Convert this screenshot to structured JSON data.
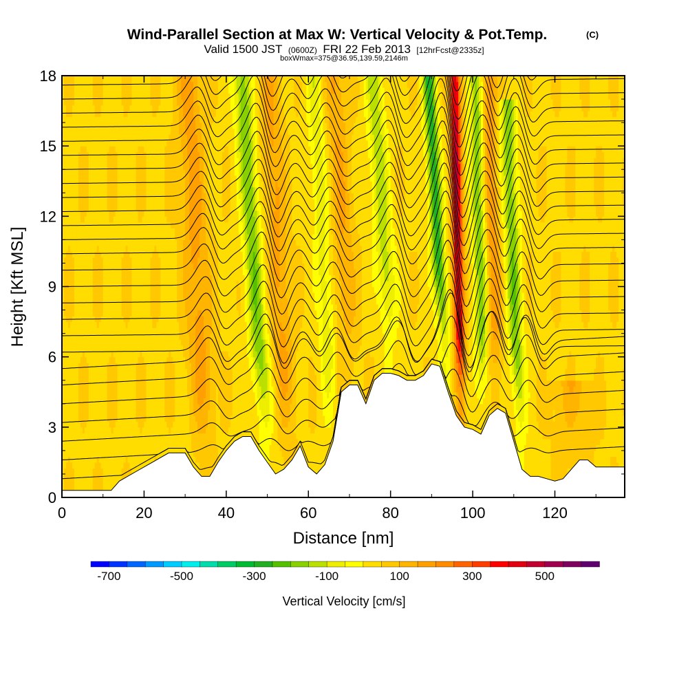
{
  "header": {
    "title": "Wind-Parallel Section at Max W: Vertical Velocity & Pot.Temp.",
    "copyright": "(C)",
    "valid_prefix": "Valid 1500 JST",
    "valid_utc": "(0600Z)",
    "valid_date": "FRI 22 Feb 2013",
    "forecast": "[12hrFcst@2335z]",
    "boxinfo": "boxWmax=375@36.95,139.59,2146m"
  },
  "chart_data": {
    "type": "heatmap",
    "title": "Wind-Parallel Section at Max W: Vertical Velocity & Pot.Temp.",
    "xlabel": "Distance [nm]",
    "ylabel": "Height [Kft MSL]",
    "xlim": [
      0,
      137
    ],
    "ylim": [
      0,
      18
    ],
    "x_ticks": [
      "0",
      "20",
      "40",
      "60",
      "80",
      "100",
      "120"
    ],
    "y_ticks": [
      "0",
      "3",
      "6",
      "9",
      "12",
      "15",
      "18"
    ],
    "colorbar": {
      "title": "Vertical Velocity [cm/s]",
      "tick_labels": [
        "-700",
        "-500",
        "-300",
        "-100",
        "100",
        "300",
        "500"
      ],
      "tick_values": [
        -700,
        -500,
        -300,
        -100,
        100,
        300,
        500
      ],
      "range": [
        -750,
        650
      ],
      "colors": [
        "#0000ff",
        "#0033ff",
        "#0066ff",
        "#0099ff",
        "#00ccff",
        "#00eeee",
        "#00ddaa",
        "#00cc66",
        "#00bb33",
        "#22b022",
        "#55c000",
        "#88d000",
        "#bbe000",
        "#eeee00",
        "#ffff00",
        "#ffdd00",
        "#ffc800",
        "#ffb400",
        "#ffa000",
        "#ff8c00",
        "#ff6400",
        "#ff3c00",
        "#ff0000",
        "#e00010",
        "#c00030",
        "#a00050",
        "#800060",
        "#600070"
      ]
    },
    "terrain_kft": [
      [
        0,
        0.3
      ],
      [
        12,
        0.3
      ],
      [
        14,
        0.7
      ],
      [
        18,
        1.1
      ],
      [
        22,
        1.5
      ],
      [
        26,
        1.9
      ],
      [
        30,
        1.9
      ],
      [
        32,
        1.3
      ],
      [
        34,
        0.9
      ],
      [
        36,
        0.9
      ],
      [
        38,
        1.5
      ],
      [
        40,
        2.0
      ],
      [
        42,
        2.4
      ],
      [
        44,
        2.6
      ],
      [
        46,
        2.6
      ],
      [
        48,
        2.0
      ],
      [
        50,
        1.5
      ],
      [
        52,
        1.0
      ],
      [
        54,
        1.2
      ],
      [
        56,
        1.6
      ],
      [
        58,
        2.2
      ],
      [
        60,
        1.3
      ],
      [
        62,
        1.0
      ],
      [
        64,
        1.4
      ],
      [
        66,
        2.4
      ],
      [
        68,
        4.5
      ],
      [
        70,
        4.8
      ],
      [
        72,
        4.8
      ],
      [
        74,
        4.0
      ],
      [
        76,
        5.0
      ],
      [
        78,
        5.3
      ],
      [
        80,
        5.3
      ],
      [
        82,
        5.2
      ],
      [
        84,
        5.0
      ],
      [
        86,
        5.0
      ],
      [
        88,
        5.2
      ],
      [
        90,
        5.7
      ],
      [
        92,
        5.6
      ],
      [
        94,
        4.5
      ],
      [
        96,
        3.5
      ],
      [
        98,
        3.0
      ],
      [
        100,
        2.9
      ],
      [
        102,
        2.7
      ],
      [
        104,
        3.5
      ],
      [
        106,
        3.8
      ],
      [
        108,
        3.6
      ],
      [
        110,
        2.4
      ],
      [
        112,
        1.2
      ],
      [
        114,
        0.9
      ],
      [
        116,
        0.9
      ],
      [
        118,
        0.8
      ],
      [
        120,
        0.7
      ],
      [
        122,
        0.8
      ],
      [
        124,
        1.2
      ],
      [
        126,
        1.6
      ],
      [
        128,
        1.6
      ],
      [
        130,
        1.3
      ],
      [
        137,
        1.3
      ]
    ],
    "vertical_velocity_features": [
      {
        "x": 33,
        "width": 3.0,
        "amp": 130,
        "top": 18,
        "tilt": 0.25
      },
      {
        "x": 47,
        "width": 2.2,
        "amp": -230,
        "top": 18,
        "tilt": 0.35
      },
      {
        "x": 53,
        "width": 2.5,
        "amp": 120,
        "top": 18,
        "tilt": 0.3
      },
      {
        "x": 64,
        "width": 2.0,
        "amp": -120,
        "top": 18,
        "tilt": 0.3
      },
      {
        "x": 69,
        "width": 2.5,
        "amp": 110,
        "top": 18,
        "tilt": 0.3
      },
      {
        "x": 79,
        "width": 2.2,
        "amp": -170,
        "top": 18,
        "tilt": 0.35
      },
      {
        "x": 92,
        "width": 1.6,
        "amp": -320,
        "top": 18,
        "tilt": 0.3
      },
      {
        "x": 96.5,
        "width": 1.3,
        "amp": 420,
        "top": 18,
        "tilt": 0.1
      },
      {
        "x": 102,
        "width": 1.8,
        "amp": -220,
        "top": 18,
        "tilt": 0.15
      },
      {
        "x": 105,
        "width": 1.8,
        "amp": 160,
        "top": 18,
        "tilt": 0.15
      },
      {
        "x": 110,
        "width": 1.8,
        "amp": -230,
        "top": 17,
        "tilt": 0.2
      },
      {
        "x": 125,
        "width": 5.0,
        "amp": 110,
        "top": 5,
        "tilt": 0.0
      }
    ],
    "theta_isentropes_kft": [
      0.8,
      1.6,
      2.4,
      3.2,
      4.0,
      4.8,
      5.5,
      6.2,
      6.9,
      7.6,
      8.3,
      9.0,
      9.7,
      10.4,
      11.0,
      11.6,
      12.2,
      12.8,
      13.4,
      14.0,
      14.6,
      15.2,
      15.8,
      16.4,
      17.0,
      17.6,
      18.2
    ],
    "wave_crests": [
      {
        "x": 35,
        "amp": 1.1
      },
      {
        "x": 49,
        "amp": 1.6
      },
      {
        "x": 58,
        "amp": 0.8
      },
      {
        "x": 66,
        "amp": 1.0
      },
      {
        "x": 81,
        "amp": 1.4
      },
      {
        "x": 94,
        "amp": 2.6
      },
      {
        "x": 104,
        "amp": 1.6
      },
      {
        "x": 112,
        "amp": 1.4
      }
    ]
  }
}
